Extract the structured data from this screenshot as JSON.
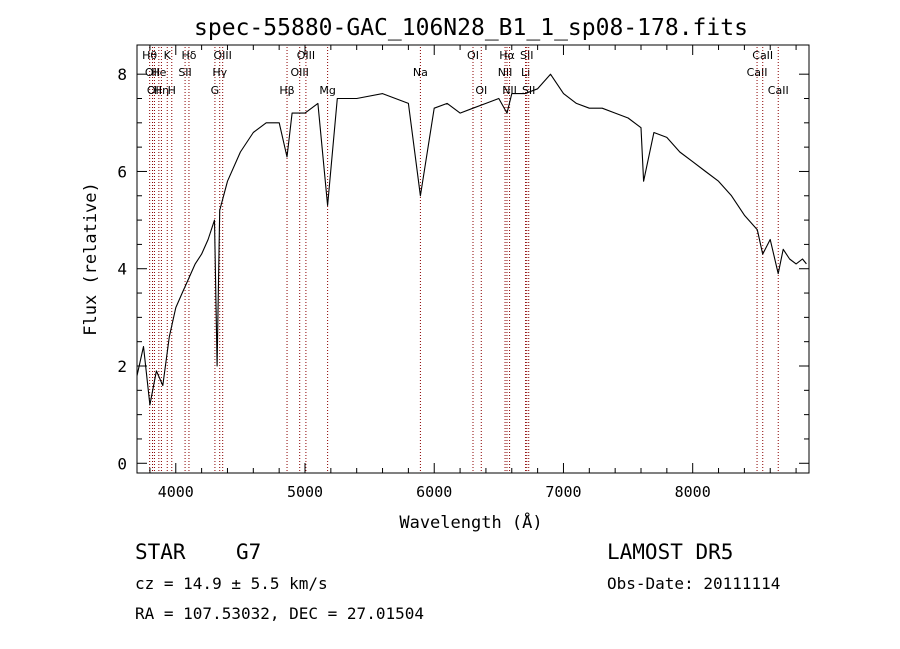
{
  "chart_data": {
    "type": "line",
    "title": "spec-55880-GAC_106N28_B1_1_sp08-178.fits",
    "xlabel": "Wavelength (Å)",
    "ylabel": "Flux (relative)",
    "xlim": [
      3700,
      8900
    ],
    "ylim": [
      -0.2,
      8.6
    ],
    "x_ticks": [
      4000,
      5000,
      6000,
      7000,
      8000
    ],
    "x_tick_labels": [
      "4000",
      "5000",
      "6000",
      "7000",
      "8000"
    ],
    "y_ticks": [
      0,
      2,
      4,
      6,
      8
    ],
    "y_tick_labels": [
      "0",
      "2",
      "4",
      "6",
      "8"
    ],
    "grid": false,
    "line_color": "#000000",
    "marker_color": "#8b0000",
    "series": [
      {
        "x": [
          3700,
          3750,
          3800,
          3850,
          3900,
          3950,
          4000,
          4050,
          4100,
          4150,
          4200,
          4250,
          4300,
          4320,
          4340,
          4400,
          4500,
          4600,
          4700,
          4800,
          4861,
          4900,
          5000,
          5100,
          5175,
          5250,
          5400,
          5600,
          5800,
          5893,
          6000,
          6100,
          6200,
          6300,
          6400,
          6500,
          6563,
          6600,
          6700,
          6800,
          6900,
          7000,
          7100,
          7200,
          7300,
          7400,
          7500,
          7600,
          7620,
          7700,
          7800,
          7900,
          8000,
          8100,
          8200,
          8300,
          8400,
          8500,
          8542,
          8600,
          8662,
          8700,
          8750,
          8800,
          8850,
          8880
        ],
        "y": [
          1.8,
          2.4,
          1.2,
          1.9,
          1.6,
          2.6,
          3.2,
          3.5,
          3.8,
          4.1,
          4.3,
          4.6,
          5.0,
          2.0,
          5.2,
          5.8,
          6.4,
          6.8,
          7.0,
          7.0,
          6.3,
          7.2,
          7.2,
          7.4,
          5.3,
          7.5,
          7.5,
          7.6,
          7.4,
          5.5,
          7.3,
          7.4,
          7.2,
          7.3,
          7.4,
          7.5,
          7.2,
          7.6,
          7.6,
          7.7,
          8.0,
          7.6,
          7.4,
          7.3,
          7.3,
          7.2,
          7.1,
          6.9,
          5.8,
          6.8,
          6.7,
          6.4,
          6.2,
          6.0,
          5.8,
          5.5,
          5.1,
          4.8,
          4.3,
          4.6,
          3.9,
          4.4,
          4.2,
          4.1,
          4.2,
          4.1
        ]
      }
    ],
    "lines": [
      {
        "wl": 3798,
        "label": "Hθ",
        "row": 0
      },
      {
        "wl": 3820,
        "label": "OII",
        "row": 1
      },
      {
        "wl": 3835,
        "label": "OII",
        "row": 2
      },
      {
        "wl": 3869,
        "label": "He",
        "row": 1
      },
      {
        "wl": 3889,
        "label": "Hη",
        "row": 2
      },
      {
        "wl": 3934,
        "label": "K",
        "row": 0
      },
      {
        "wl": 3969,
        "label": "H",
        "row": 2
      },
      {
        "wl": 4072,
        "label": "SII",
        "row": 1
      },
      {
        "wl": 4102,
        "label": "Hδ",
        "row": 0
      },
      {
        "wl": 4303,
        "label": "G",
        "row": 2
      },
      {
        "wl": 4340,
        "label": "Hγ",
        "row": 1
      },
      {
        "wl": 4363,
        "label": "OIII",
        "row": 0
      },
      {
        "wl": 4861,
        "label": "Hβ",
        "row": 2
      },
      {
        "wl": 4959,
        "label": "OIII",
        "row": 1
      },
      {
        "wl": 5007,
        "label": "OIII",
        "row": 0
      },
      {
        "wl": 5175,
        "label": "Mg",
        "row": 2
      },
      {
        "wl": 5893,
        "label": "Na",
        "row": 1
      },
      {
        "wl": 6300,
        "label": "OI",
        "row": 0
      },
      {
        "wl": 6364,
        "label": "OI",
        "row": 2
      },
      {
        "wl": 6548,
        "label": "NII",
        "row": 1
      },
      {
        "wl": 6563,
        "label": "Hα",
        "row": 0
      },
      {
        "wl": 6583,
        "label": "NII",
        "row": 2
      },
      {
        "wl": 6707,
        "label": "Li",
        "row": 1
      },
      {
        "wl": 6716,
        "label": "SII",
        "row": 0
      },
      {
        "wl": 6731,
        "label": "SII",
        "row": 2
      },
      {
        "wl": 8498,
        "label": "CaII",
        "row": 1
      },
      {
        "wl": 8542,
        "label": "CaII",
        "row": 0
      },
      {
        "wl": 8662,
        "label": "CaII",
        "row": 2
      }
    ]
  },
  "info": {
    "object_class": "STAR",
    "subclass": "G7",
    "survey": "LAMOST  DR5",
    "redshift": "cz = 14.9 ± 5.5 km/s",
    "obs_date": "Obs-Date: 20111114",
    "coords": "RA = 107.53032, DEC =  27.01504"
  }
}
